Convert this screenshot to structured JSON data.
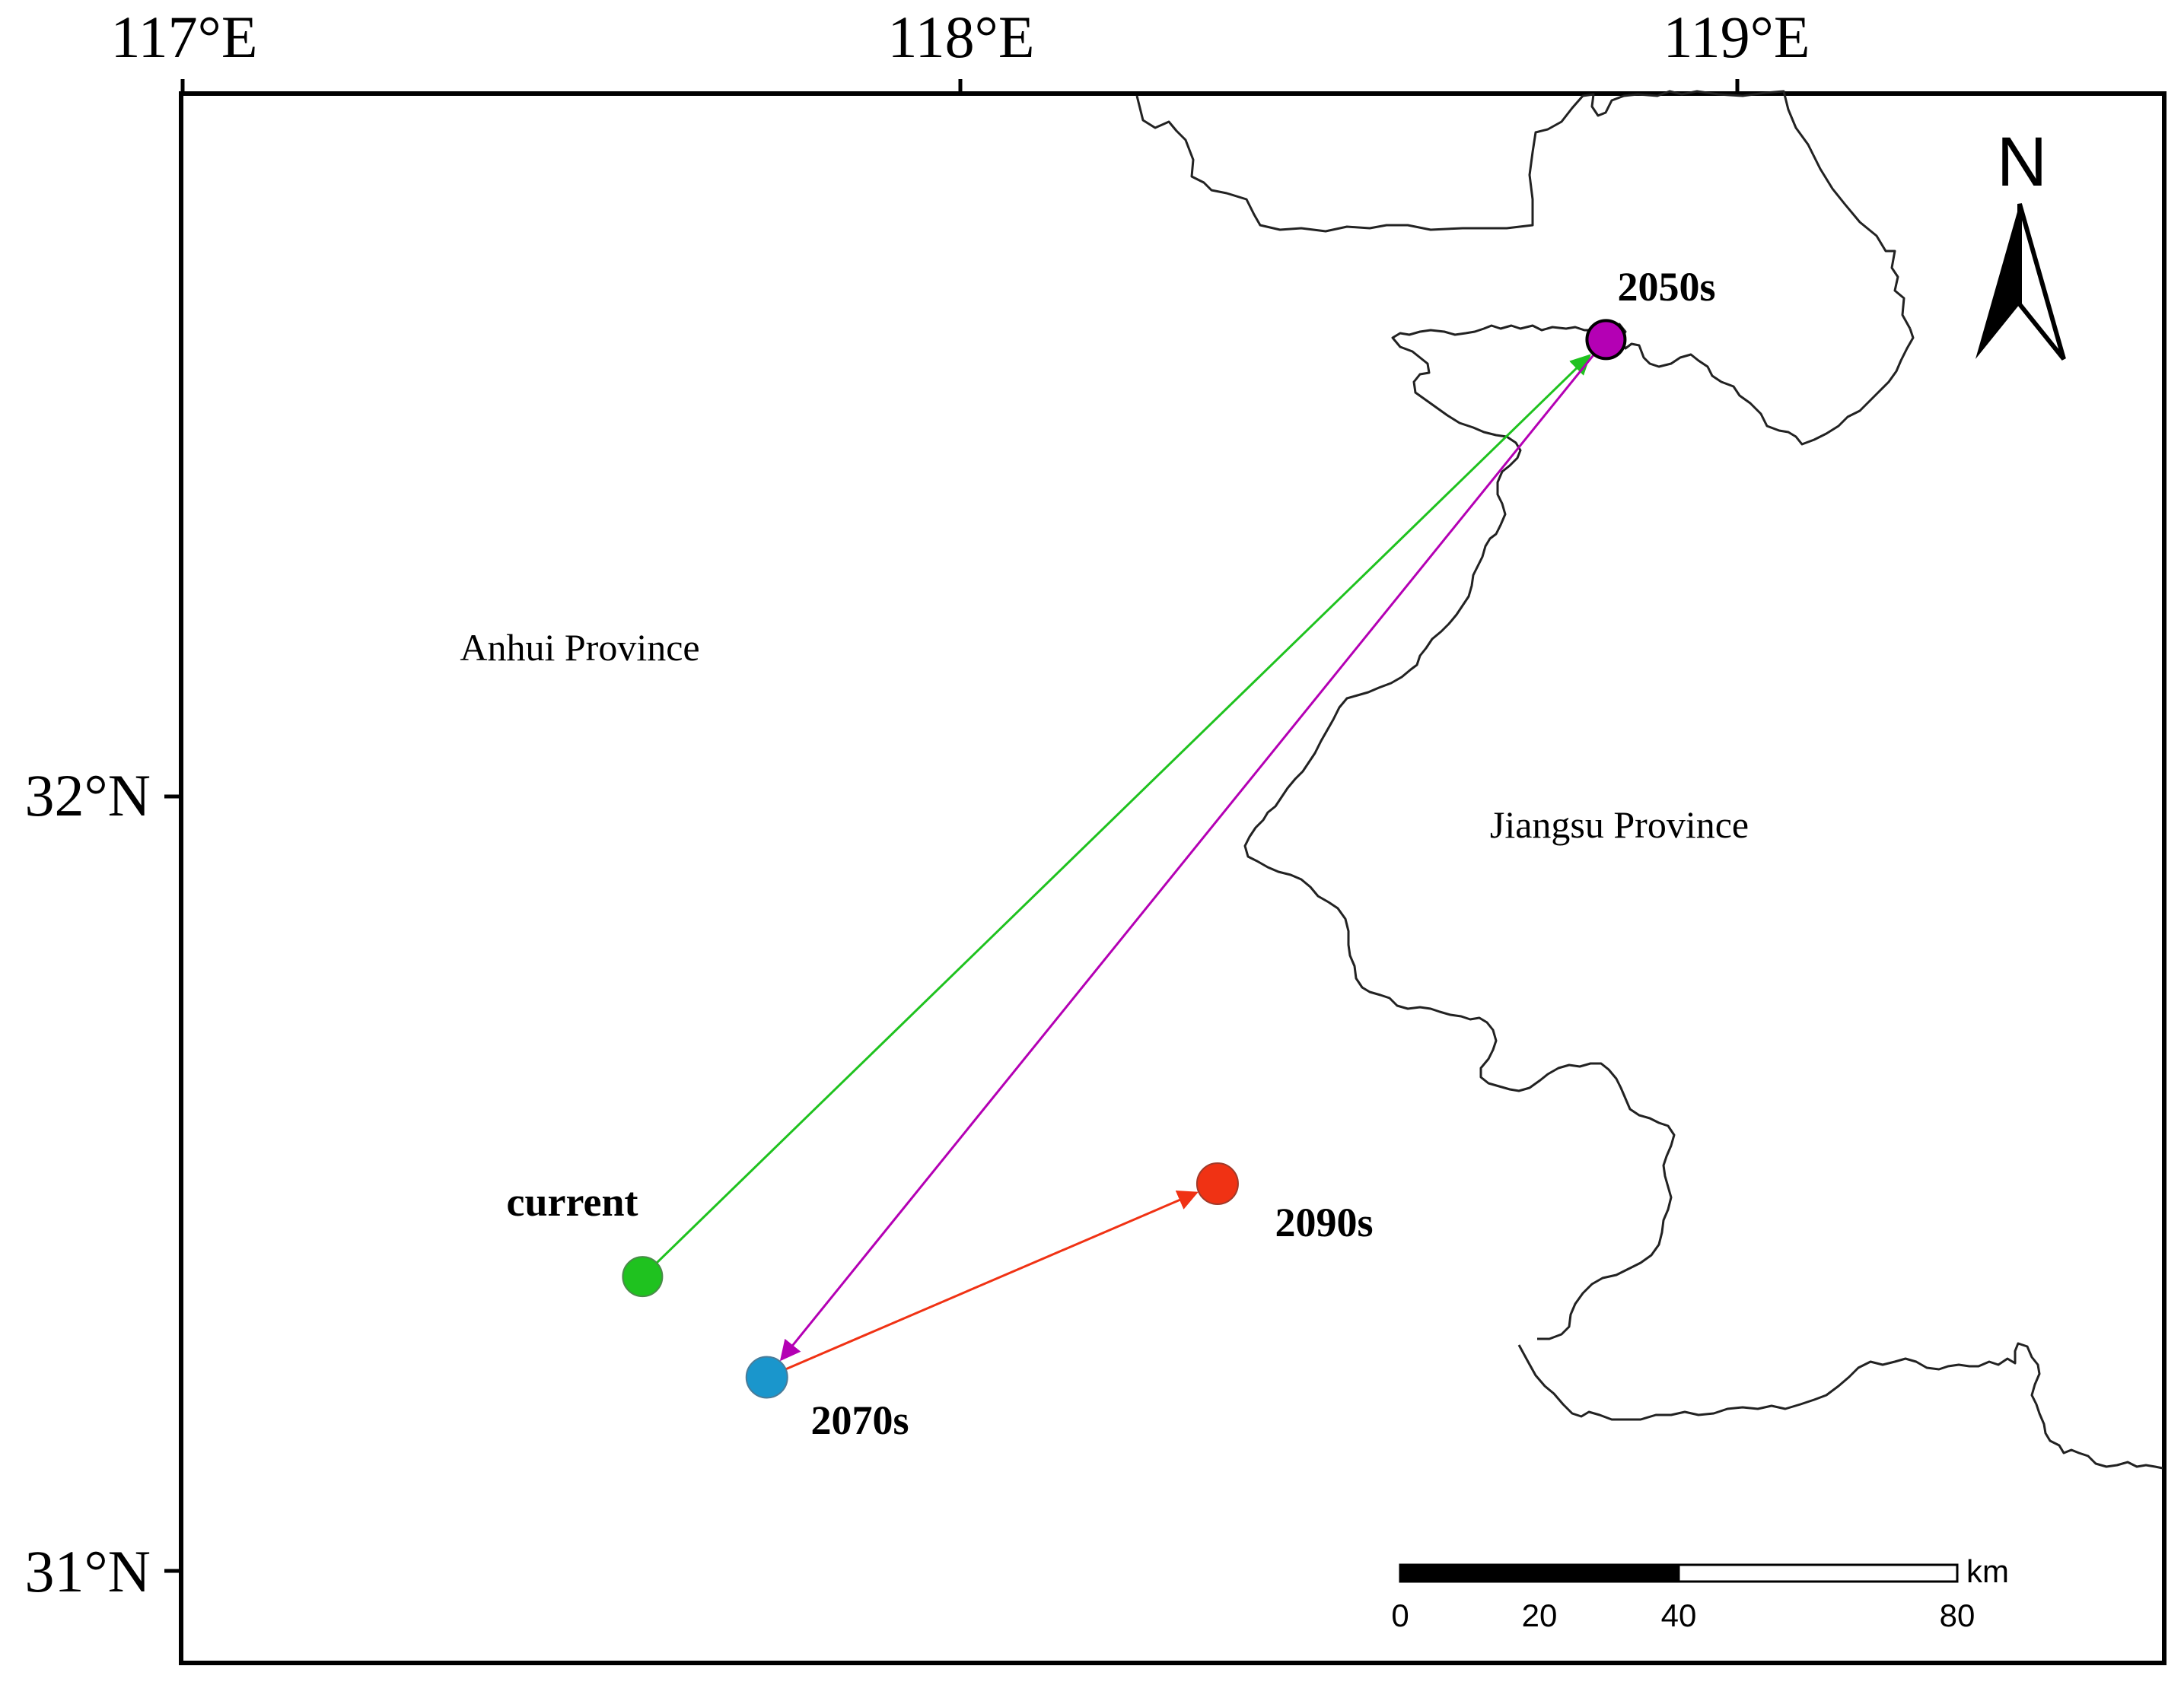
{
  "map": {
    "lon_ticks": [
      {
        "label": "117°E",
        "lon": 117
      },
      {
        "label": "118°E",
        "lon": 118
      },
      {
        "label": "119°E",
        "lon": 119
      }
    ],
    "lat_ticks": [
      {
        "label": "32°N",
        "lat": 32
      },
      {
        "label": "31°N",
        "lat": 31
      }
    ],
    "provinces": {
      "anhui": "Anhui Province",
      "jiangsu": "Jiangsu Province"
    },
    "north_label": "N",
    "scale_bar": {
      "unit": "km",
      "ticks": [
        "0",
        "20",
        "40",
        "80"
      ]
    }
  },
  "points": [
    {
      "id": "current",
      "label": "current",
      "color": "#1fc21f",
      "lon": 117.59,
      "lat": 31.38
    },
    {
      "id": "2050s",
      "label": "2050s",
      "color": "#b400b4",
      "lon": 118.83,
      "lat": 32.59
    },
    {
      "id": "2070s",
      "label": "2070s",
      "color": "#1a96cc",
      "lon": 117.75,
      "lat": 31.25
    },
    {
      "id": "2090s",
      "label": "2090s",
      "color": "#f03214",
      "lon": 118.33,
      "lat": 31.5
    }
  ],
  "shifts": [
    {
      "from": "current",
      "to": "2050s",
      "color": "#1fc21f"
    },
    {
      "from": "2050s",
      "to": "2070s",
      "color": "#b400b4"
    },
    {
      "from": "2070s",
      "to": "2090s",
      "color": "#f03214"
    }
  ]
}
